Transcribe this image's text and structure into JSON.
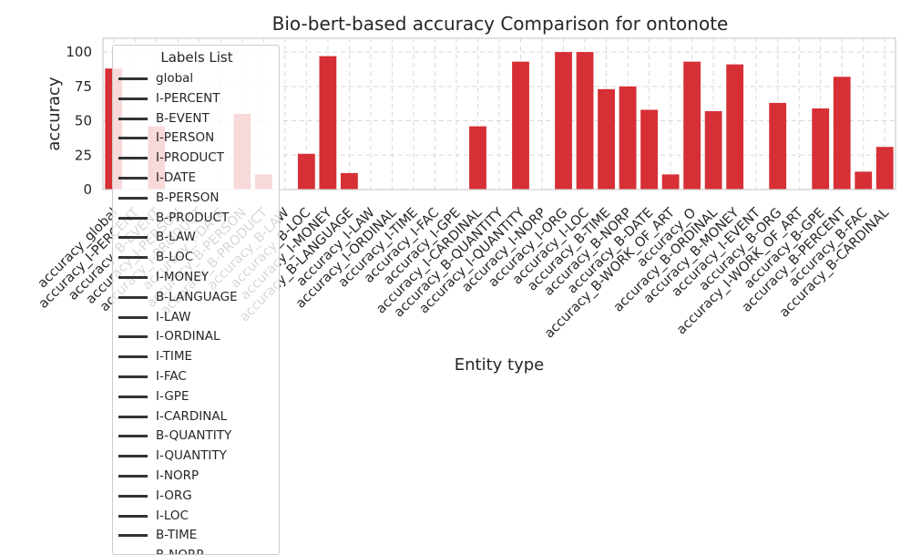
{
  "chart_data": {
    "type": "bar",
    "title": "Bio-bert-based  accuracy Comparison for ontonote",
    "xlabel": "Entity type",
    "ylabel": "accuracy",
    "ylim": [
      0,
      110
    ],
    "yticks": [
      0,
      25,
      50,
      75,
      100
    ],
    "grid": true,
    "bar_color": "#d62f35",
    "categories": [
      "accuracy_global",
      "accuracy_I-PERCENT",
      "accuracy_B-EVENT",
      "accuracy_I-PERSON",
      "accuracy_I-PRODUCT",
      "accuracy_I-DATE",
      "accuracy_B-PERSON",
      "accuracy_B-PRODUCT",
      "accuracy_B-LAW",
      "accuracy_B-LOC",
      "accuracy_I-MONEY",
      "accuracy_B-LANGUAGE",
      "accuracy_I-LAW",
      "accuracy_I-ORDINAL",
      "accuracy_I-TIME",
      "accuracy_I-FAC",
      "accuracy_I-GPE",
      "accuracy_I-CARDINAL",
      "accuracy_B-QUANTITY",
      "accuracy_I-QUANTITY",
      "accuracy_I-NORP",
      "accuracy_I-ORG",
      "accuracy_I-LOC",
      "accuracy_B-TIME",
      "accuracy_B-NORP",
      "accuracy_B-DATE",
      "accuracy_B-WORK_OF_ART",
      "accuracy_O",
      "accuracy_B-ORDINAL",
      "accuracy_B-MONEY",
      "accuracy_I-EVENT",
      "accuracy_B-ORG",
      "accuracy_I-WORK_OF_ART",
      "accuracy_B-GPE",
      "accuracy_B-PERCENT",
      "accuracy_B-FAC",
      "accuracy_B-CARDINAL"
    ],
    "values": [
      88,
      0,
      46,
      0,
      0,
      0,
      55,
      11,
      0,
      26,
      97,
      12,
      0,
      0,
      0,
      0,
      0,
      46,
      0,
      93,
      0,
      100,
      100,
      73,
      75,
      58,
      11,
      93,
      57,
      91,
      0,
      63,
      0,
      59,
      82,
      13,
      31
    ],
    "legend": {
      "title": "Labels List",
      "placement": "upper-left",
      "entries": [
        "global",
        "I-PERCENT",
        "B-EVENT",
        "I-PERSON",
        "I-PRODUCT",
        "I-DATE",
        "B-PERSON",
        "B-PRODUCT",
        "B-LAW",
        "B-LOC",
        "I-MONEY",
        "B-LANGUAGE",
        "I-LAW",
        "I-ORDINAL",
        "I-TIME",
        "I-FAC",
        "I-GPE",
        "I-CARDINAL",
        "B-QUANTITY",
        "I-QUANTITY",
        "I-NORP",
        "I-ORG",
        "I-LOC",
        "B-TIME",
        "B-NORP"
      ]
    }
  }
}
